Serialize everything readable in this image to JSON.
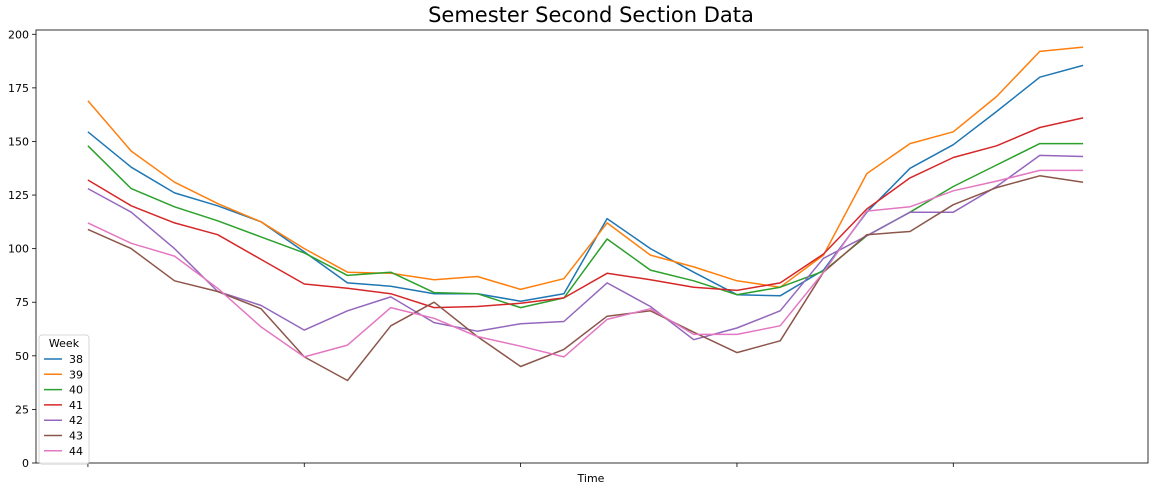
{
  "chart_data": {
    "type": "line",
    "title": "Semester Second Section Data",
    "xlabel": "Time",
    "ylabel": "",
    "ylim": [
      0,
      200
    ],
    "yticks": [
      0,
      25,
      50,
      75,
      100,
      125,
      150,
      175,
      200
    ],
    "grid": false,
    "legend": {
      "title": "Week",
      "placement": "lower-left"
    },
    "x": [
      0,
      1,
      2,
      3,
      4,
      5,
      6,
      7,
      8,
      9,
      10,
      11,
      12,
      13,
      14,
      15,
      16,
      17,
      18,
      19,
      20,
      21,
      22,
      23
    ],
    "xlim": [
      -1.2,
      24.5
    ],
    "xticks": [
      0,
      5,
      10,
      15,
      20
    ],
    "series": [
      {
        "name": "38",
        "color": "#1f77b4",
        "values": [
          154.5,
          138,
          126,
          120,
          112.5,
          98.5,
          84,
          82.5,
          79,
          79,
          75.5,
          79,
          114,
          100,
          89,
          78.5,
          78,
          90,
          117,
          137.5,
          148.5,
          164,
          180,
          185.5
        ]
      },
      {
        "name": "39",
        "color": "#ff7f0e",
        "values": [
          169,
          145.5,
          131,
          121,
          112.5,
          100,
          89,
          88.5,
          85.5,
          87,
          81,
          86,
          112,
          97,
          91.5,
          85,
          82,
          97,
          135,
          149,
          154.5,
          171,
          192,
          194
        ]
      },
      {
        "name": "40",
        "color": "#2ca02c",
        "values": [
          148,
          128,
          119.5,
          113,
          105.5,
          98,
          87.5,
          89,
          79.5,
          79,
          72.5,
          77,
          104.5,
          90,
          85,
          78.5,
          82,
          89.5,
          106,
          117,
          129,
          139,
          149,
          149
        ]
      },
      {
        "name": "41",
        "color": "#d62728",
        "values": [
          132,
          120,
          112,
          106.5,
          95,
          83.5,
          81.5,
          79,
          72.5,
          73,
          74.5,
          77,
          88.5,
          85.5,
          82,
          80.5,
          84,
          97.5,
          118.5,
          133,
          142.5,
          148,
          156.5,
          161
        ]
      },
      {
        "name": "42",
        "color": "#9467bd",
        "values": [
          128,
          117,
          100,
          80,
          73.5,
          62,
          71,
          77.5,
          65.5,
          61.5,
          65,
          66,
          84,
          73,
          57.5,
          63,
          71,
          95.5,
          106,
          117,
          117,
          129,
          143.5,
          143
        ]
      },
      {
        "name": "43",
        "color": "#8c564b",
        "values": [
          109,
          100,
          85,
          80,
          72,
          49.5,
          38.5,
          64,
          75,
          59,
          45,
          53,
          68.5,
          71,
          61,
          51.5,
          57,
          89,
          106.5,
          108,
          120.5,
          128.5,
          134,
          131
        ]
      },
      {
        "name": "44",
        "color": "#e377c2",
        "values": [
          112,
          102.5,
          96.5,
          81.5,
          63.5,
          49.5,
          55,
          72.5,
          67.5,
          59,
          54.5,
          49.5,
          67,
          72,
          60,
          60,
          64,
          89,
          117.5,
          119.5,
          127,
          131.5,
          136.5,
          136.5
        ]
      }
    ]
  }
}
